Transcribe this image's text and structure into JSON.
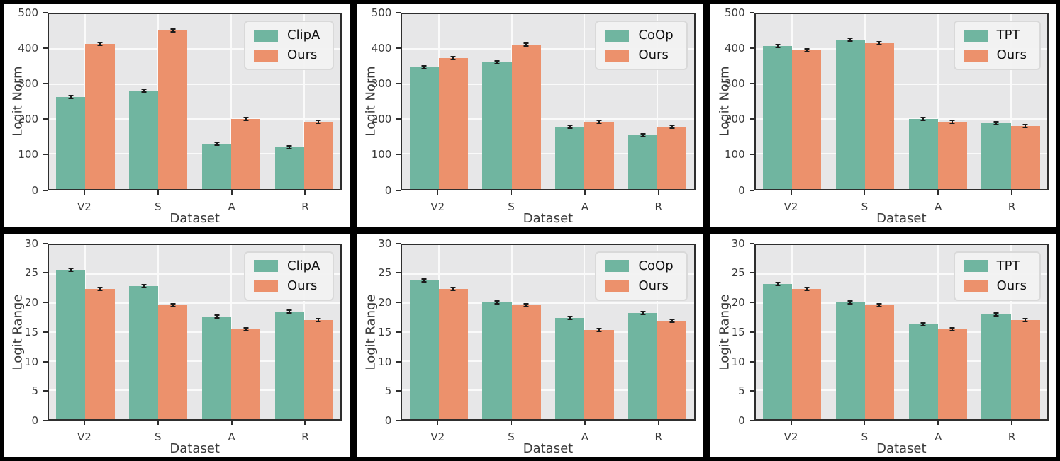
{
  "figure": {
    "description": "2x3 grid of grouped bar charts comparing baseline methods vs Ours",
    "colors": {
      "baseline_green": "#70b5a0",
      "ours_orange": "#ec916c",
      "plot_background": "#e7e7e8",
      "gridline": "#fafafa",
      "spine": "#2e2e2e",
      "tick_text": "#3a3a3a",
      "figure_background": "#ffffff",
      "frame": "#000000",
      "legend_background": "#f2f2f2"
    }
  },
  "chart_data": [
    {
      "type": "bar",
      "panel_id": "logit-norm-clipa",
      "ylabel": "Logit Norm",
      "xlabel": "Dataset",
      "categories": [
        "V2",
        "S",
        "A",
        "R"
      ],
      "ylim": [
        0,
        500
      ],
      "yticks": [
        0,
        100,
        200,
        300,
        400,
        500
      ],
      "grid": true,
      "legend_position": "upper right",
      "series": [
        {
          "name": "ClipA",
          "color": "#70b5a0",
          "values": [
            262,
            281,
            128,
            118
          ],
          "error": 3
        },
        {
          "name": "Ours",
          "color": "#ec916c",
          "values": [
            414,
            454,
            200,
            191
          ],
          "error": 3
        }
      ]
    },
    {
      "type": "bar",
      "panel_id": "logit-norm-coop",
      "ylabel": "Logit Norm",
      "xlabel": "Dataset",
      "categories": [
        "V2",
        "S",
        "A",
        "R"
      ],
      "ylim": [
        0,
        500
      ],
      "yticks": [
        0,
        100,
        200,
        300,
        400,
        500
      ],
      "grid": true,
      "legend_position": "upper right",
      "series": [
        {
          "name": "CoOp",
          "color": "#70b5a0",
          "values": [
            347,
            363,
            177,
            154
          ],
          "error": 3
        },
        {
          "name": "Ours",
          "color": "#ec916c",
          "values": [
            375,
            412,
            191,
            178
          ],
          "error": 3
        }
      ]
    },
    {
      "type": "bar",
      "panel_id": "logit-norm-tpt",
      "ylabel": "Logit Norm",
      "xlabel": "Dataset",
      "categories": [
        "V2",
        "S",
        "A",
        "R"
      ],
      "ylim": [
        0,
        500
      ],
      "yticks": [
        0,
        100,
        200,
        300,
        400,
        500
      ],
      "grid": true,
      "legend_position": "upper right",
      "series": [
        {
          "name": "TPT",
          "color": "#70b5a0",
          "values": [
            408,
            427,
            199,
            187
          ],
          "error": 3
        },
        {
          "name": "Ours",
          "color": "#ec916c",
          "values": [
            396,
            417,
            192,
            179
          ],
          "error": 3
        }
      ]
    },
    {
      "type": "bar",
      "panel_id": "logit-range-clipa",
      "ylabel": "Logit Range",
      "xlabel": "Dataset",
      "categories": [
        "V2",
        "S",
        "A",
        "R"
      ],
      "ylim": [
        0,
        30
      ],
      "yticks": [
        0,
        5,
        10,
        15,
        20,
        25,
        30
      ],
      "grid": true,
      "legend_position": "upper right",
      "series": [
        {
          "name": "ClipA",
          "color": "#70b5a0",
          "values": [
            25.7,
            22.9,
            17.6,
            18.5
          ],
          "error": 0.15
        },
        {
          "name": "Ours",
          "color": "#ec916c",
          "values": [
            22.4,
            19.6,
            15.4,
            17.0
          ],
          "error": 0.15
        }
      ]
    },
    {
      "type": "bar",
      "panel_id": "logit-range-coop",
      "ylabel": "Logit Range",
      "xlabel": "Dataset",
      "categories": [
        "V2",
        "S",
        "A",
        "R"
      ],
      "ylim": [
        0,
        30
      ],
      "yticks": [
        0,
        5,
        10,
        15,
        20,
        25,
        30
      ],
      "grid": true,
      "legend_position": "upper right",
      "series": [
        {
          "name": "CoOp",
          "color": "#70b5a0",
          "values": [
            23.8,
            20.1,
            17.4,
            18.2
          ],
          "error": 0.15
        },
        {
          "name": "Ours",
          "color": "#ec916c",
          "values": [
            22.4,
            19.6,
            15.3,
            16.9
          ],
          "error": 0.15
        }
      ]
    },
    {
      "type": "bar",
      "panel_id": "logit-range-tpt",
      "ylabel": "Logit Range",
      "xlabel": "Dataset",
      "categories": [
        "V2",
        "S",
        "A",
        "R"
      ],
      "ylim": [
        0,
        30
      ],
      "yticks": [
        0,
        5,
        10,
        15,
        20,
        25,
        30
      ],
      "grid": true,
      "legend_position": "upper right",
      "series": [
        {
          "name": "TPT",
          "color": "#70b5a0",
          "values": [
            23.2,
            20.1,
            16.3,
            18.0
          ],
          "error": 0.15
        },
        {
          "name": "Ours",
          "color": "#ec916c",
          "values": [
            22.4,
            19.6,
            15.4,
            17.0
          ],
          "error": 0.15
        }
      ]
    }
  ]
}
